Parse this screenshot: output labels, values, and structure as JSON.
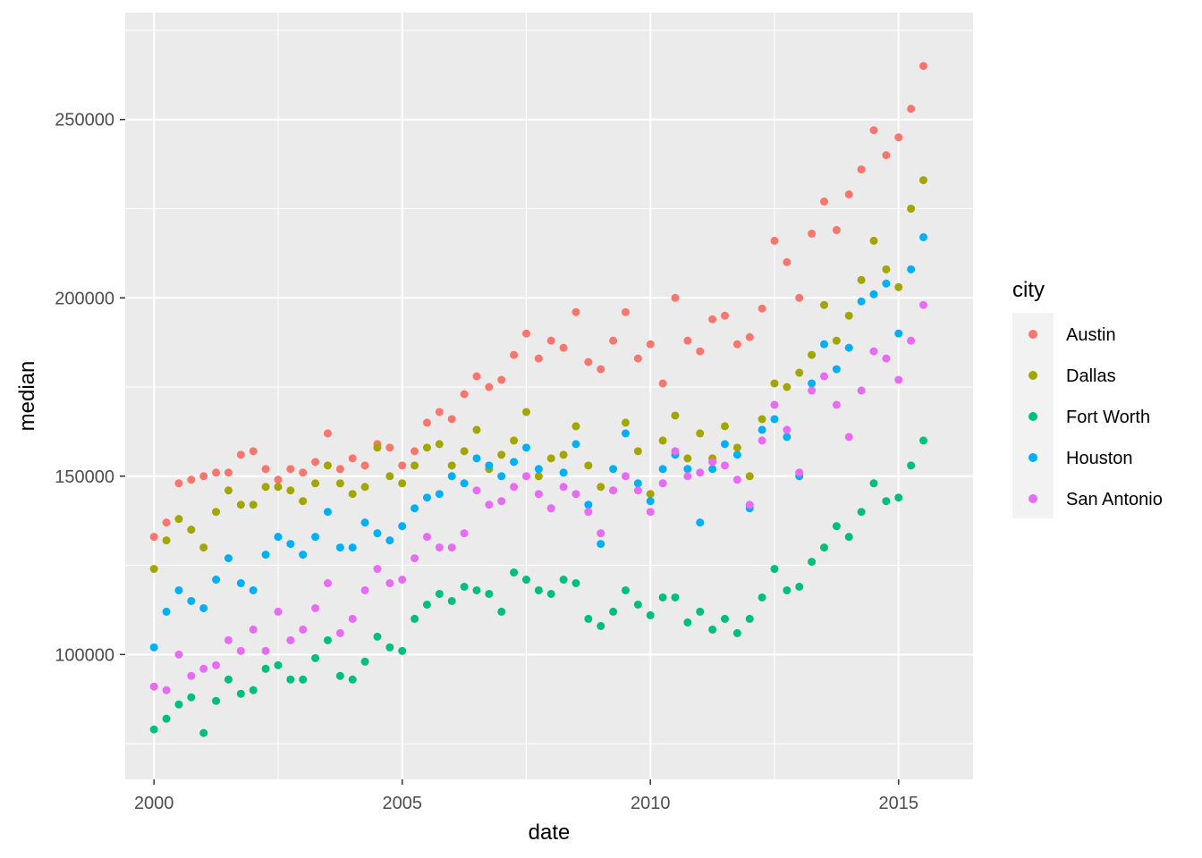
{
  "chart_data": {
    "type": "scatter",
    "xlabel": "date",
    "ylabel": "median",
    "xlim": [
      1999.42,
      2016.5
    ],
    "ylim": [
      65000,
      280000
    ],
    "xticks": [
      2000,
      2005,
      2010,
      2015
    ],
    "yticks": [
      100000,
      150000,
      200000,
      250000
    ],
    "grid": true,
    "legend": {
      "title": "city",
      "position": "right"
    },
    "series": [
      {
        "name": "Austin",
        "color": "#F8766D",
        "x": [
          2000.0,
          2000.25,
          2000.5,
          2000.75,
          2001.0,
          2001.25,
          2001.5,
          2001.75,
          2002.0,
          2002.25,
          2002.5,
          2002.75,
          2003.0,
          2003.25,
          2003.5,
          2003.75,
          2004.0,
          2004.25,
          2004.5,
          2004.75,
          2005.0,
          2005.25,
          2005.5,
          2005.75,
          2006.0,
          2006.25,
          2006.5,
          2006.75,
          2007.0,
          2007.25,
          2007.5,
          2007.75,
          2008.0,
          2008.25,
          2008.5,
          2008.75,
          2009.0,
          2009.25,
          2009.5,
          2009.75,
          2010.0,
          2010.25,
          2010.5,
          2010.75,
          2011.0,
          2011.25,
          2011.5,
          2011.75,
          2012.0,
          2012.25,
          2012.5,
          2012.75,
          2013.0,
          2013.25,
          2013.5,
          2013.75,
          2014.0,
          2014.25,
          2014.5,
          2014.75,
          2015.0,
          2015.25,
          2015.5
        ],
        "y": [
          133000,
          137000,
          148000,
          149000,
          150000,
          151000,
          151000,
          156000,
          157000,
          152000,
          149000,
          152000,
          151000,
          154000,
          162000,
          152000,
          155000,
          153000,
          159000,
          158000,
          153000,
          157000,
          165000,
          168000,
          166000,
          173000,
          178000,
          175000,
          177000,
          184000,
          190000,
          183000,
          188000,
          186000,
          196000,
          182000,
          180000,
          188000,
          196000,
          183000,
          187000,
          176000,
          200000,
          188000,
          185000,
          194000,
          195000,
          187000,
          189000,
          197000,
          216000,
          210000,
          200000,
          218000,
          227000,
          219000,
          229000,
          236000,
          247000,
          240000,
          245000,
          253000,
          265000
        ]
      },
      {
        "name": "Dallas",
        "color": "#A3A500",
        "x": [
          2000.0,
          2000.25,
          2000.5,
          2000.75,
          2001.0,
          2001.25,
          2001.5,
          2001.75,
          2002.0,
          2002.25,
          2002.5,
          2002.75,
          2003.0,
          2003.25,
          2003.5,
          2003.75,
          2004.0,
          2004.25,
          2004.5,
          2004.75,
          2005.0,
          2005.25,
          2005.5,
          2005.75,
          2006.0,
          2006.25,
          2006.5,
          2006.75,
          2007.0,
          2007.25,
          2007.5,
          2007.75,
          2008.0,
          2008.25,
          2008.5,
          2008.75,
          2009.0,
          2009.25,
          2009.5,
          2009.75,
          2010.0,
          2010.25,
          2010.5,
          2010.75,
          2011.0,
          2011.25,
          2011.5,
          2011.75,
          2012.0,
          2012.25,
          2012.5,
          2012.75,
          2013.0,
          2013.25,
          2013.5,
          2013.75,
          2014.0,
          2014.25,
          2014.5,
          2014.75,
          2015.0,
          2015.25,
          2015.5
        ],
        "y": [
          124000,
          132000,
          138000,
          135000,
          130000,
          140000,
          146000,
          142000,
          142000,
          147000,
          147000,
          146000,
          143000,
          148000,
          153000,
          148000,
          145000,
          147000,
          158000,
          150000,
          148000,
          153000,
          158000,
          159000,
          153000,
          157000,
          163000,
          152000,
          156000,
          160000,
          168000,
          150000,
          155000,
          156000,
          164000,
          153000,
          147000,
          146000,
          165000,
          157000,
          145000,
          160000,
          167000,
          155000,
          162000,
          155000,
          164000,
          158000,
          150000,
          166000,
          176000,
          175000,
          179000,
          184000,
          198000,
          188000,
          195000,
          205000,
          216000,
          208000,
          203000,
          225000,
          233000
        ]
      },
      {
        "name": "Fort Worth",
        "color": "#00BF7D",
        "x": [
          2000.0,
          2000.25,
          2000.5,
          2000.75,
          2001.0,
          2001.25,
          2001.5,
          2001.75,
          2002.0,
          2002.25,
          2002.5,
          2002.75,
          2003.0,
          2003.25,
          2003.5,
          2003.75,
          2004.0,
          2004.25,
          2004.5,
          2004.75,
          2005.0,
          2005.25,
          2005.5,
          2005.75,
          2006.0,
          2006.25,
          2006.5,
          2006.75,
          2007.0,
          2007.25,
          2007.5,
          2007.75,
          2008.0,
          2008.25,
          2008.5,
          2008.75,
          2009.0,
          2009.25,
          2009.5,
          2009.75,
          2010.0,
          2010.25,
          2010.5,
          2010.75,
          2011.0,
          2011.25,
          2011.5,
          2011.75,
          2012.0,
          2012.25,
          2012.5,
          2012.75,
          2013.0,
          2013.25,
          2013.5,
          2013.75,
          2014.0,
          2014.25,
          2014.5,
          2014.75,
          2015.0,
          2015.25,
          2015.5
        ],
        "y": [
          79000,
          82000,
          86000,
          88000,
          78000,
          87000,
          93000,
          89000,
          90000,
          96000,
          97000,
          93000,
          93000,
          99000,
          104000,
          94000,
          93000,
          98000,
          105000,
          102000,
          101000,
          110000,
          114000,
          117000,
          115000,
          119000,
          118000,
          117000,
          112000,
          123000,
          121000,
          118000,
          117000,
          121000,
          120000,
          110000,
          108000,
          112000,
          118000,
          114000,
          111000,
          116000,
          116000,
          109000,
          112000,
          107000,
          110000,
          106000,
          110000,
          116000,
          124000,
          118000,
          119000,
          126000,
          130000,
          136000,
          133000,
          140000,
          148000,
          143000,
          144000,
          153000,
          160000
        ]
      },
      {
        "name": "Houston",
        "color": "#00B0F6",
        "x": [
          2000.0,
          2000.25,
          2000.5,
          2000.75,
          2001.0,
          2001.25,
          2001.5,
          2001.75,
          2002.0,
          2002.25,
          2002.5,
          2002.75,
          2003.0,
          2003.25,
          2003.5,
          2003.75,
          2004.0,
          2004.25,
          2004.5,
          2004.75,
          2005.0,
          2005.25,
          2005.5,
          2005.75,
          2006.0,
          2006.25,
          2006.5,
          2006.75,
          2007.0,
          2007.25,
          2007.5,
          2007.75,
          2008.0,
          2008.25,
          2008.5,
          2008.75,
          2009.0,
          2009.25,
          2009.5,
          2009.75,
          2010.0,
          2010.25,
          2010.5,
          2010.75,
          2011.0,
          2011.25,
          2011.5,
          2011.75,
          2012.0,
          2012.25,
          2012.5,
          2012.75,
          2013.0,
          2013.25,
          2013.5,
          2013.75,
          2014.0,
          2014.25,
          2014.5,
          2014.75,
          2015.0,
          2015.25,
          2015.5
        ],
        "y": [
          102000,
          112000,
          118000,
          115000,
          113000,
          121000,
          127000,
          120000,
          118000,
          128000,
          133000,
          131000,
          128000,
          133000,
          140000,
          130000,
          130000,
          137000,
          134000,
          132000,
          136000,
          141000,
          144000,
          145000,
          150000,
          148000,
          155000,
          153000,
          150000,
          154000,
          158000,
          152000,
          141000,
          151000,
          159000,
          142000,
          131000,
          152000,
          162000,
          148000,
          143000,
          152000,
          156000,
          152000,
          137000,
          152000,
          159000,
          156000,
          141000,
          163000,
          166000,
          161000,
          150000,
          176000,
          187000,
          180000,
          186000,
          199000,
          201000,
          204000,
          190000,
          208000,
          217000
        ]
      },
      {
        "name": "San Antonio",
        "color": "#E76BF3",
        "x": [
          2000.0,
          2000.25,
          2000.5,
          2000.75,
          2001.0,
          2001.25,
          2001.5,
          2001.75,
          2002.0,
          2002.25,
          2002.5,
          2002.75,
          2003.0,
          2003.25,
          2003.5,
          2003.75,
          2004.0,
          2004.25,
          2004.5,
          2004.75,
          2005.0,
          2005.25,
          2005.5,
          2005.75,
          2006.0,
          2006.25,
          2006.5,
          2006.75,
          2007.0,
          2007.25,
          2007.5,
          2007.75,
          2008.0,
          2008.25,
          2008.5,
          2008.75,
          2009.0,
          2009.25,
          2009.5,
          2009.75,
          2010.0,
          2010.25,
          2010.5,
          2010.75,
          2011.0,
          2011.25,
          2011.5,
          2011.75,
          2012.0,
          2012.25,
          2012.5,
          2012.75,
          2013.0,
          2013.25,
          2013.5,
          2013.75,
          2014.0,
          2014.25,
          2014.5,
          2014.75,
          2015.0,
          2015.25,
          2015.5
        ],
        "y": [
          91000,
          90000,
          100000,
          94000,
          96000,
          97000,
          104000,
          101000,
          107000,
          101000,
          112000,
          104000,
          107000,
          113000,
          120000,
          106000,
          110000,
          118000,
          124000,
          120000,
          121000,
          127000,
          133000,
          130000,
          130000,
          134000,
          146000,
          142000,
          143000,
          147000,
          150000,
          145000,
          141000,
          147000,
          145000,
          140000,
          134000,
          146000,
          150000,
          146000,
          140000,
          148000,
          157000,
          150000,
          151000,
          154000,
          153000,
          149000,
          142000,
          160000,
          170000,
          163000,
          151000,
          174000,
          178000,
          170000,
          161000,
          174000,
          185000,
          183000,
          177000,
          188000,
          198000
        ]
      }
    ]
  }
}
